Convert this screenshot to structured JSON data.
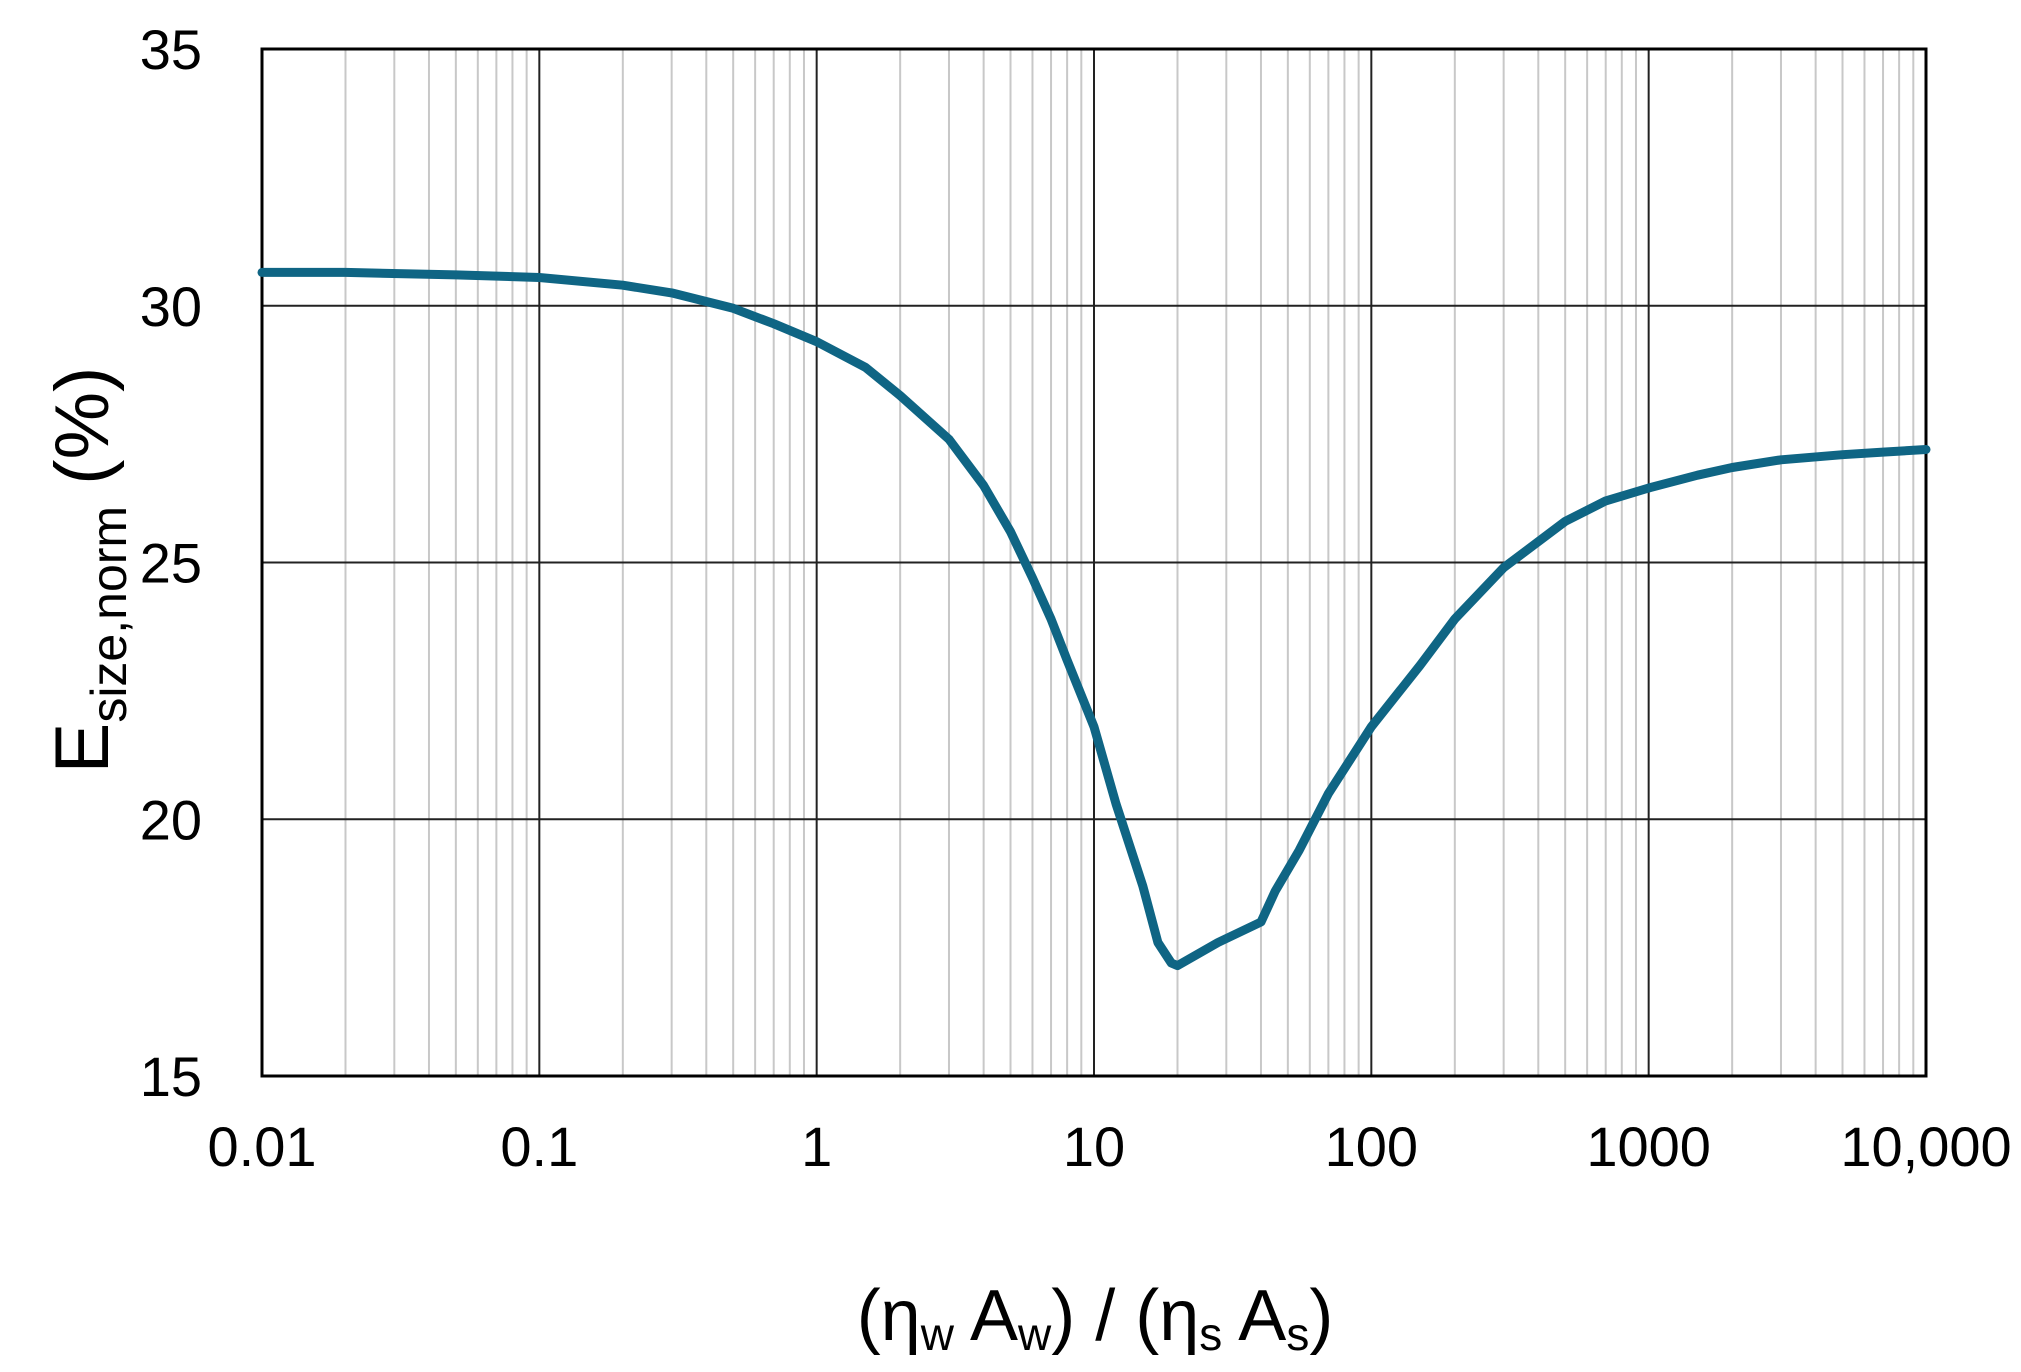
{
  "chart_data": {
    "type": "line",
    "x_scale": "log",
    "xlim": [
      0.01,
      10000
    ],
    "ylim": [
      15,
      35
    ],
    "grid": {
      "major": true,
      "minor_x": true
    },
    "legend": "none",
    "x_ticks": [
      {
        "value": 0.01,
        "label": "0.01"
      },
      {
        "value": 0.1,
        "label": "0.1"
      },
      {
        "value": 1,
        "label": "1"
      },
      {
        "value": 10,
        "label": "10"
      },
      {
        "value": 100,
        "label": "100"
      },
      {
        "value": 1000,
        "label": "1000"
      },
      {
        "value": 10000,
        "label": "10,000"
      }
    ],
    "y_ticks": [
      {
        "value": 15,
        "label": "15"
      },
      {
        "value": 20,
        "label": "20"
      },
      {
        "value": 25,
        "label": "25"
      },
      {
        "value": 30,
        "label": "30"
      },
      {
        "value": 35,
        "label": "35"
      }
    ],
    "xlabel": {
      "open1": "(η",
      "sub1": "w",
      "mid1": " A",
      "sub2": "w",
      "mid2": ") / (η",
      "sub3": "s",
      "mid3": " A",
      "sub4": "s",
      "close": ")"
    },
    "ylabel": {
      "main": "E",
      "sub": "size,norm",
      "unit": " (%)"
    },
    "colors": {
      "line": "#0f6584",
      "major_grid": "#222222",
      "minor_grid": "#c8c8c8",
      "frame": "#000000"
    },
    "series": [
      {
        "points": [
          [
            0.01,
            30.65
          ],
          [
            0.02,
            30.65
          ],
          [
            0.05,
            30.6
          ],
          [
            0.1,
            30.55
          ],
          [
            0.2,
            30.4
          ],
          [
            0.3,
            30.25
          ],
          [
            0.5,
            29.95
          ],
          [
            0.7,
            29.65
          ],
          [
            1,
            29.3
          ],
          [
            1.5,
            28.8
          ],
          [
            2,
            28.25
          ],
          [
            3,
            27.4
          ],
          [
            4,
            26.5
          ],
          [
            5,
            25.6
          ],
          [
            6,
            24.7
          ],
          [
            7,
            23.9
          ],
          [
            8,
            23.1
          ],
          [
            10,
            21.8
          ],
          [
            12,
            20.3
          ],
          [
            15,
            18.7
          ],
          [
            17,
            17.6
          ],
          [
            19,
            17.2
          ],
          [
            20,
            17.15
          ],
          [
            28,
            17.6
          ],
          [
            40,
            18.0
          ],
          [
            45,
            18.6
          ],
          [
            55,
            19.4
          ],
          [
            70,
            20.5
          ],
          [
            100,
            21.8
          ],
          [
            150,
            23.0
          ],
          [
            200,
            23.9
          ],
          [
            300,
            24.9
          ],
          [
            500,
            25.8
          ],
          [
            700,
            26.2
          ],
          [
            1000,
            26.45
          ],
          [
            1500,
            26.7
          ],
          [
            2000,
            26.85
          ],
          [
            3000,
            27.0
          ],
          [
            5000,
            27.1
          ],
          [
            7000,
            27.15
          ],
          [
            10000,
            27.2
          ]
        ]
      }
    ]
  }
}
